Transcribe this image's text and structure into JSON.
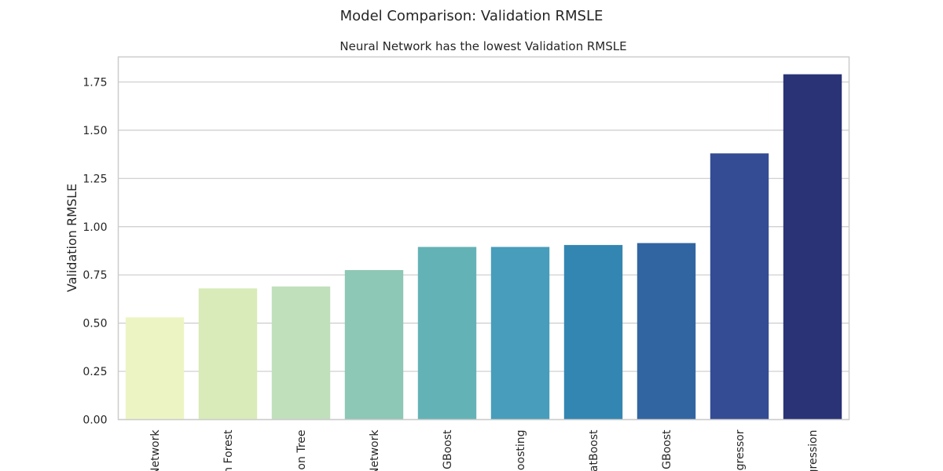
{
  "chart_data": {
    "type": "bar",
    "suptitle": "Model Comparison: Validation RMSLE",
    "title": "Neural Network has the lowest Validation RMSLE",
    "xlabel": "",
    "ylabel": "Validation RMSLE",
    "ylim": [
      0,
      1.88
    ],
    "yticks": [
      "0.00",
      "0.25",
      "0.50",
      "0.75",
      "1.00",
      "1.25",
      "1.50",
      "1.75"
    ],
    "ytick_values": [
      0,
      0.25,
      0.5,
      0.75,
      1.0,
      1.25,
      1.5,
      1.75
    ],
    "grid": true,
    "categories": [
      "Network",
      "n Forest",
      "on Tree",
      "Network",
      "GBoost",
      "Boosting",
      "atBoost",
      "GBoost",
      "gressor",
      "gression"
    ],
    "values": [
      0.53,
      0.68,
      0.69,
      0.775,
      0.895,
      0.895,
      0.905,
      0.915,
      1.38,
      1.79
    ],
    "colors": [
      "#edf4c3",
      "#d8ebb8",
      "#c0e0bc",
      "#8dc7b5",
      "#63b3b6",
      "#479dbb",
      "#3386b1",
      "#3165a2",
      "#344c93",
      "#2a3376"
    ]
  }
}
